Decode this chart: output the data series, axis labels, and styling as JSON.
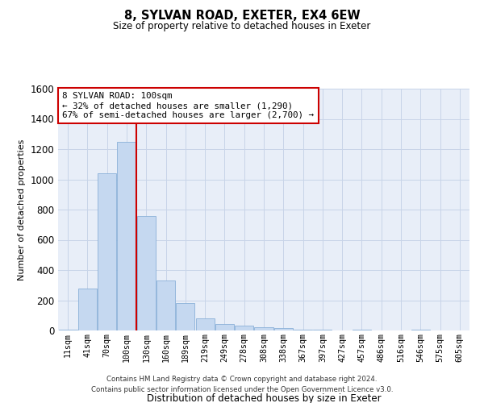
{
  "title": "8, SYLVAN ROAD, EXETER, EX4 6EW",
  "subtitle": "Size of property relative to detached houses in Exeter",
  "xlabel": "Distribution of detached houses by size in Exeter",
  "ylabel": "Number of detached properties",
  "categories": [
    "11sqm",
    "41sqm",
    "70sqm",
    "100sqm",
    "130sqm",
    "160sqm",
    "189sqm",
    "219sqm",
    "249sqm",
    "278sqm",
    "308sqm",
    "338sqm",
    "367sqm",
    "397sqm",
    "427sqm",
    "457sqm",
    "486sqm",
    "516sqm",
    "546sqm",
    "575sqm",
    "605sqm"
  ],
  "values": [
    5,
    280,
    1040,
    1250,
    755,
    330,
    180,
    80,
    45,
    30,
    20,
    15,
    5,
    5,
    0,
    4,
    0,
    0,
    4,
    0,
    0
  ],
  "bar_color": "#c5d8f0",
  "bar_edge_color": "#8ab0d8",
  "red_line_x": 3.5,
  "annotation_line1": "8 SYLVAN ROAD: 100sqm",
  "annotation_line2": "← 32% of detached houses are smaller (1,290)",
  "annotation_line3": "67% of semi-detached houses are larger (2,700) →",
  "annotation_box_color": "#ffffff",
  "annotation_box_edge_color": "#cc0000",
  "red_line_color": "#cc0000",
  "ylim": [
    0,
    1600
  ],
  "grid_color": "#c8d4e8",
  "bg_color": "#e8eef8",
  "footer_line1": "Contains HM Land Registry data © Crown copyright and database right 2024.",
  "footer_line2": "Contains public sector information licensed under the Open Government Licence v3.0."
}
